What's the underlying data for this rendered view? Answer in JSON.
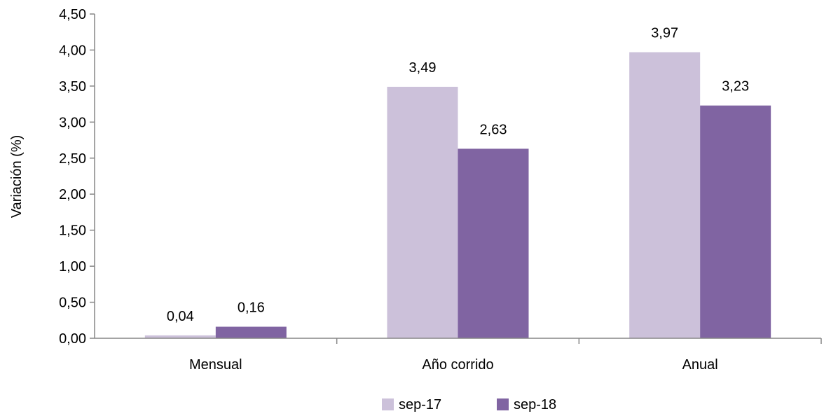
{
  "chart_data": {
    "type": "bar",
    "title": "",
    "xlabel": "",
    "ylabel": "Variación (%)",
    "categories": [
      "Mensual",
      "Año corrido",
      "Anual"
    ],
    "series": [
      {
        "name": "sep-17",
        "color": "#ccc1da",
        "values": [
          0.04,
          3.49,
          3.97
        ],
        "labels": [
          "0,04",
          "3,49",
          "3,97"
        ]
      },
      {
        "name": "sep-18",
        "color": "#8064a2",
        "values": [
          0.16,
          2.63,
          3.23
        ],
        "labels": [
          "0,16",
          "2,63",
          "3,23"
        ]
      }
    ],
    "ylim": [
      0,
      4.5
    ],
    "yticks": [
      0,
      0.5,
      1,
      1.5,
      2,
      2.5,
      3,
      3.5,
      4,
      4.5
    ],
    "ytick_labels": [
      "0,00",
      "0,50",
      "1,00",
      "1,50",
      "2,00",
      "2,50",
      "3,00",
      "3,50",
      "4,00",
      "4,50"
    ],
    "grid": false,
    "legend_position": "bottom"
  }
}
